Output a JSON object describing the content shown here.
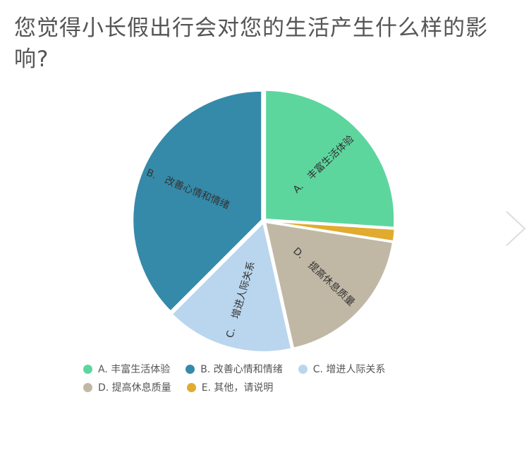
{
  "question": {
    "title": "您觉得小长假出行会对您的生活产生什么样的影响?"
  },
  "chart_data": {
    "type": "pie",
    "title": "您觉得小长假出行会对您的生活产生什么样的影响?",
    "slices": [
      {
        "legend": "A. 丰富生活体验",
        "letter": "A.",
        "text": "丰富生活体验",
        "value": 26,
        "color": "#5dd69e"
      },
      {
        "legend": "E. 其他，请说明",
        "letter": "",
        "text": "",
        "value": 1.5,
        "color": "#e0ab2f"
      },
      {
        "legend": "D. 提高休息质量",
        "letter": "D.",
        "text": "提高休息质量",
        "value": 19,
        "color": "#c0b8a5"
      },
      {
        "legend": "C. 增进人际关系",
        "letter": "C.",
        "text": "增进人际关系",
        "value": 16,
        "color": "#bad6ee"
      },
      {
        "legend": "B. 改善心情和情绪",
        "letter": "B.",
        "text": "改善心情和情绪",
        "value": 37.5,
        "color": "#358aa9"
      }
    ],
    "legend_order": [
      {
        "label": "A. 丰富生活体验",
        "color": "#5dd69e"
      },
      {
        "label": "B. 改善心情和情绪",
        "color": "#358aa9"
      },
      {
        "label": "C. 增进人际关系",
        "color": "#bad6ee"
      },
      {
        "label": "D. 提高休息质量",
        "color": "#c0b8a5"
      },
      {
        "label": "E. 其他，请说明",
        "color": "#e0ab2f"
      }
    ],
    "legend_position": "bottom"
  }
}
